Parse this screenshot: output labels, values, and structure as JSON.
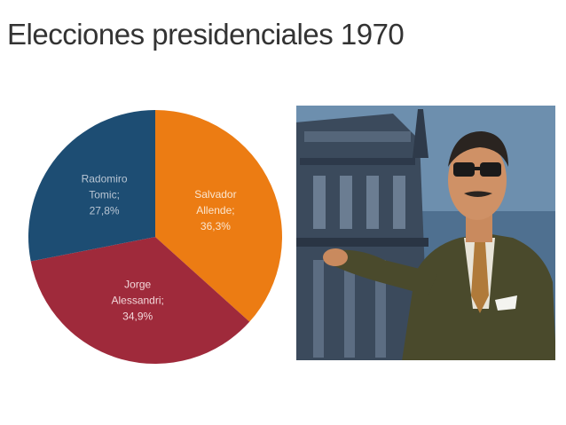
{
  "slide": {
    "title": "Elecciones presidenciales 1970"
  },
  "chart_data": {
    "type": "pie",
    "title": "",
    "start_angle_deg": 0,
    "direction": "clockwise",
    "slices": [
      {
        "lines": [
          "Salvador",
          "Allende;",
          "36,3%"
        ],
        "value": 36.3,
        "color": "#ec7c13"
      },
      {
        "lines": [
          "Jorge",
          "Alessandri;",
          "34,9%"
        ],
        "value": 34.9,
        "color": "#9f2a3b"
      },
      {
        "lines": [
          "Radomiro",
          "Tomic;",
          "27,8%"
        ],
        "value": 27.8,
        "color": "#1d4d73"
      }
    ],
    "legend": "none"
  },
  "photo": {
    "icon": "portrait-photo"
  }
}
